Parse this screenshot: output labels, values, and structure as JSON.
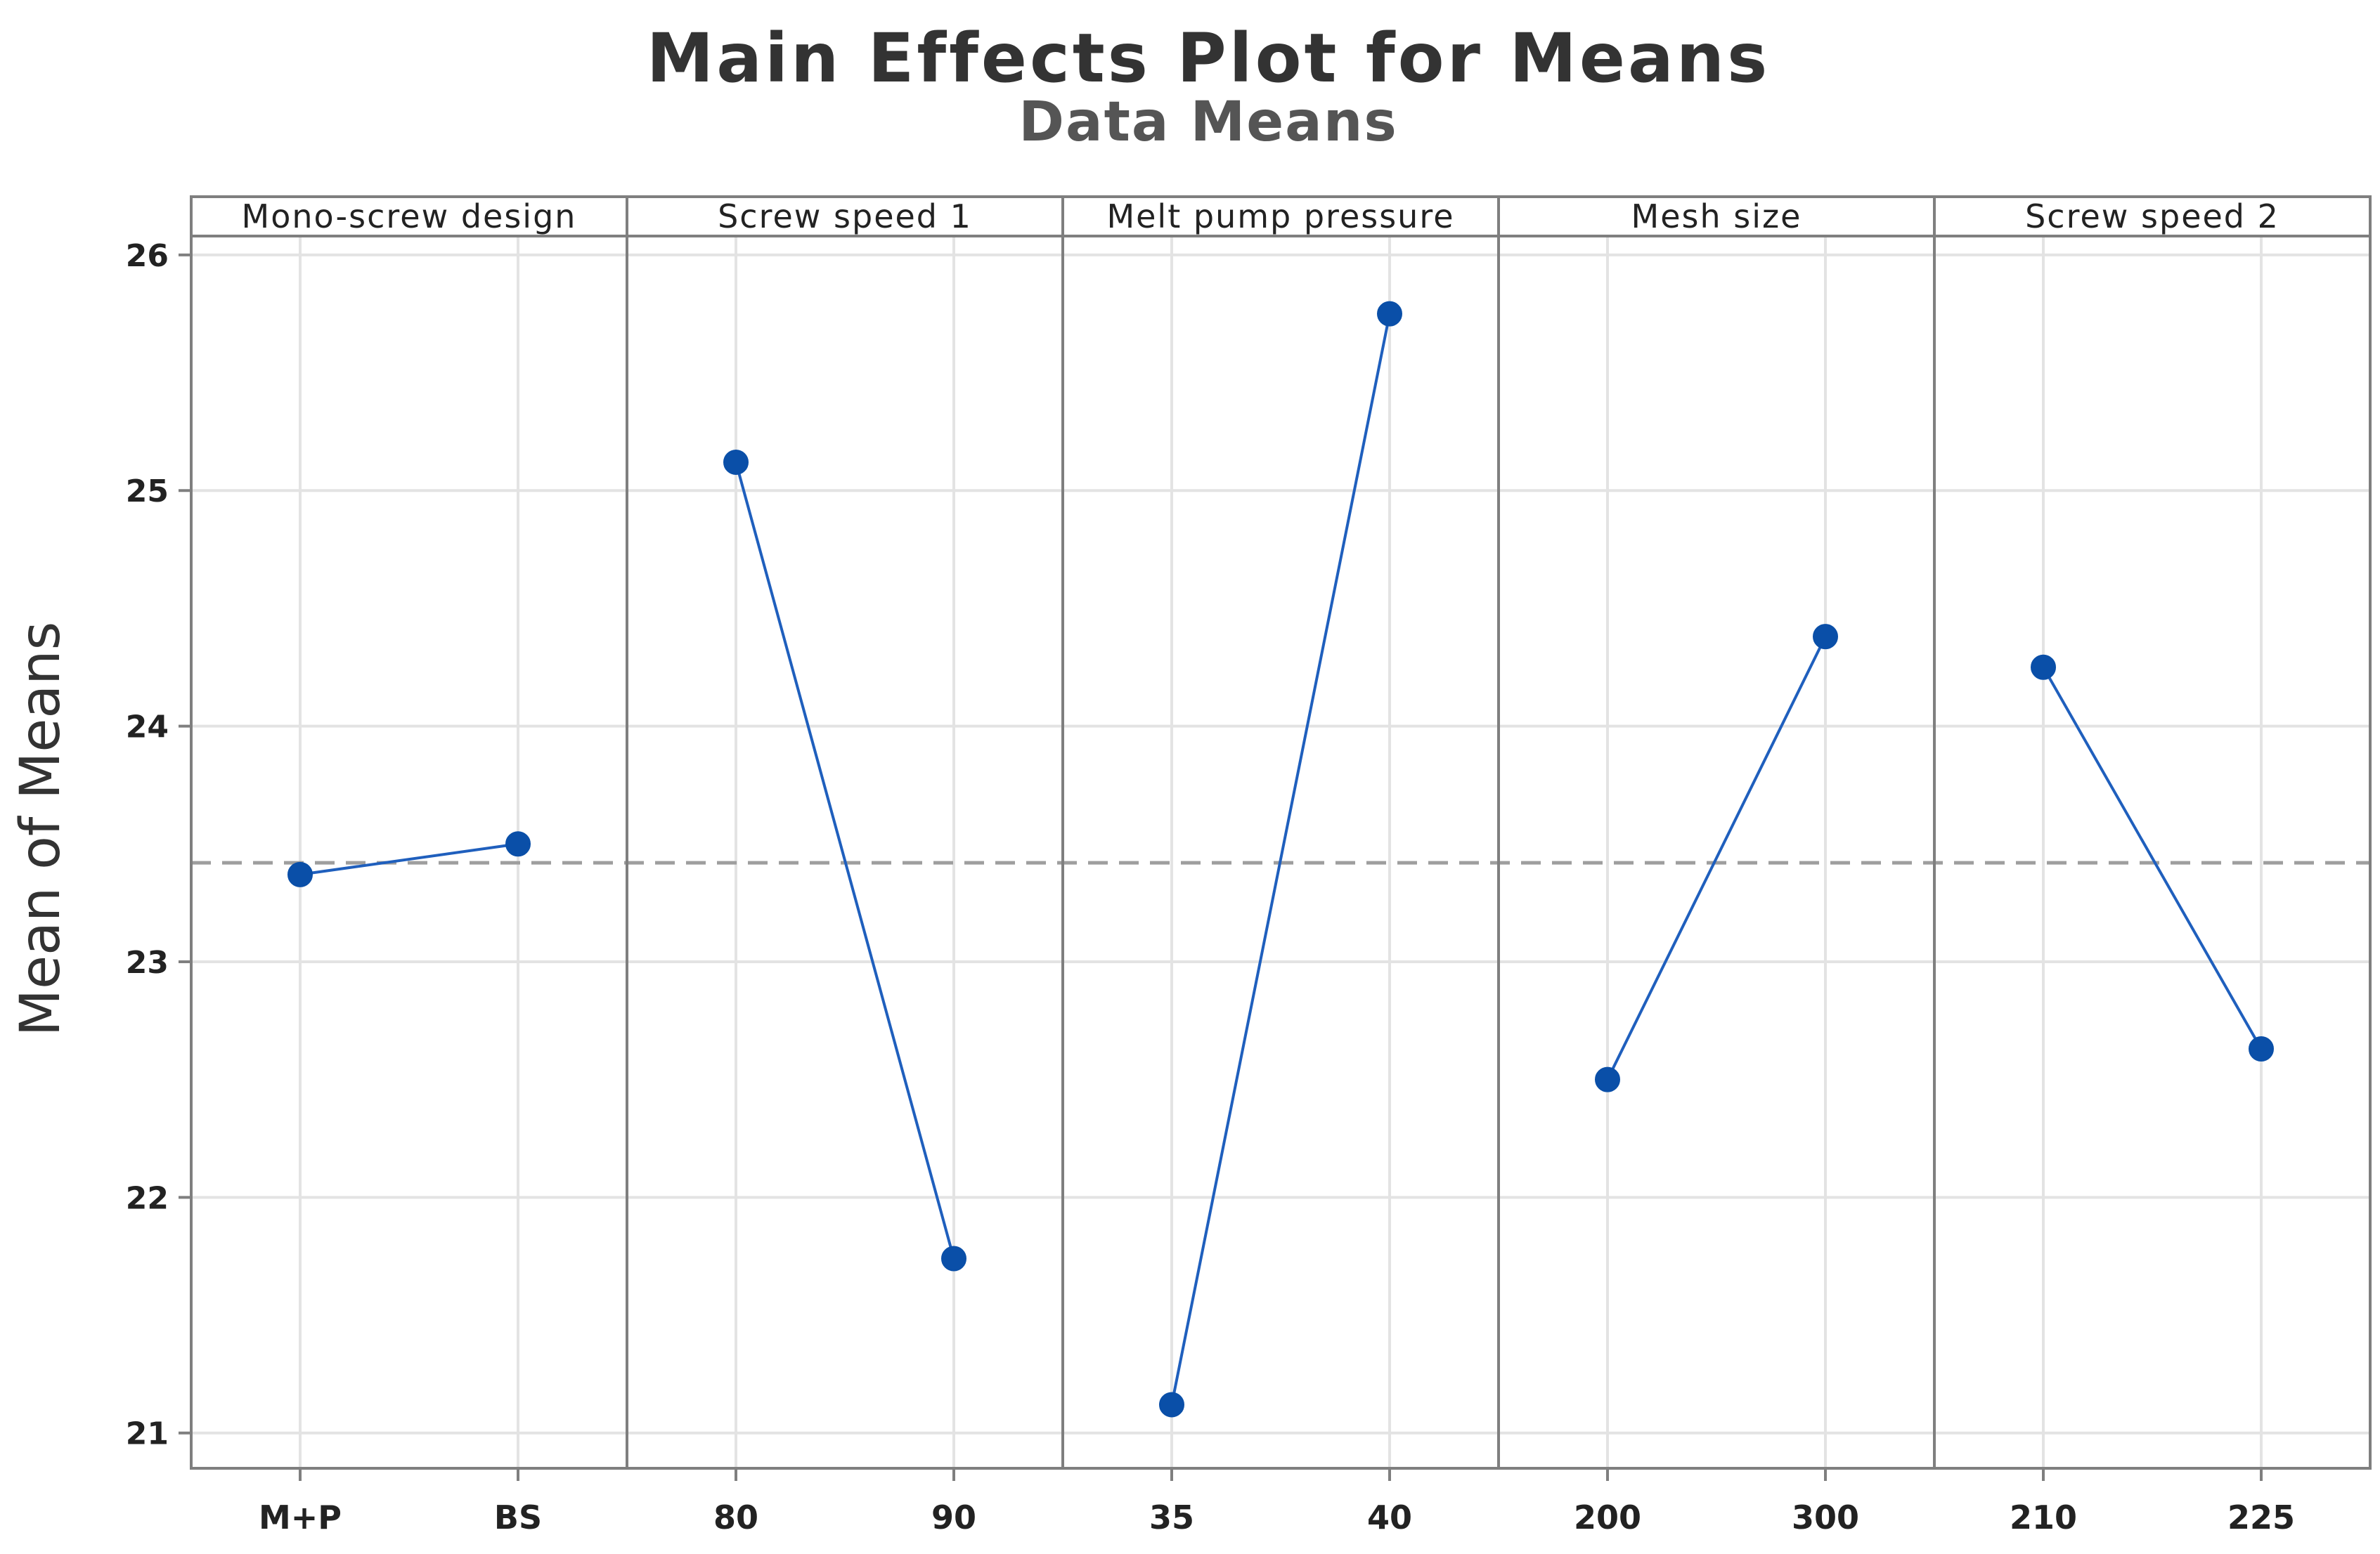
{
  "chart_data": {
    "type": "line",
    "title": "Main Effects Plot for Means",
    "subtitle": "Data Means",
    "ylabel": "Mean of Means",
    "ylim": [
      20.85,
      26.08
    ],
    "yticks": [
      21,
      22,
      23,
      24,
      25,
      26
    ],
    "reference_mean": 23.42,
    "grid": true,
    "panels": [
      {
        "factor": "Mono-screw design",
        "levels": [
          "M+P",
          "BS"
        ],
        "values": [
          23.37,
          23.5
        ]
      },
      {
        "factor": "Screw speed 1",
        "levels": [
          "80",
          "90"
        ],
        "values": [
          25.12,
          21.74
        ]
      },
      {
        "factor": "Melt pump pressure",
        "levels": [
          "35",
          "40"
        ],
        "values": [
          21.12,
          25.75
        ]
      },
      {
        "factor": "Mesh size",
        "levels": [
          "200",
          "300"
        ],
        "values": [
          22.5,
          24.38
        ]
      },
      {
        "factor": "Screw speed 2",
        "levels": [
          "210",
          "225"
        ],
        "values": [
          24.25,
          22.63
        ]
      }
    ],
    "colors": {
      "series": "#1f5fbd",
      "point": "#0a4fa8",
      "reference": "#9e9e9e"
    }
  }
}
